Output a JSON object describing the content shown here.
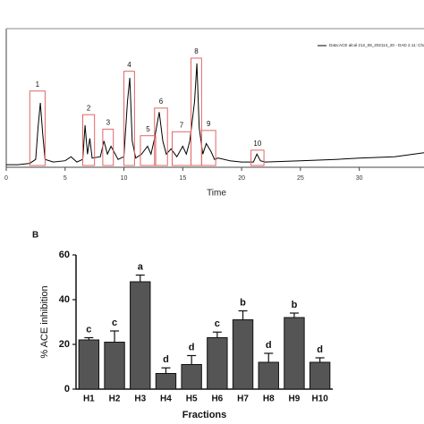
{
  "chart_data": [
    {
      "type": "line",
      "xlabel": "Time",
      "xlim": [
        0,
        35.5
      ],
      "xticks": [
        0,
        5,
        10,
        15,
        20,
        25,
        30
      ],
      "ylim": [
        0,
        1
      ],
      "series": [
        {
          "name": "Data:ACE alcal 212_08_202114_20 - DAD 2.11: Channel 1",
          "color": "#000000",
          "x": [
            0,
            1,
            2,
            2.5,
            2.7,
            2.9,
            3.1,
            3.3,
            4,
            5,
            5.5,
            6,
            6.5,
            6.7,
            6.9,
            7.1,
            7.3,
            8,
            8.3,
            8.6,
            8.9,
            9.5,
            10,
            10.3,
            10.5,
            10.7,
            11,
            11.5,
            12,
            12.3,
            12.6,
            13,
            13.3,
            13.6,
            14,
            14.5,
            15,
            15.3,
            15.6,
            16,
            16.2,
            16.4,
            16.7,
            17,
            17.4,
            17.7,
            18,
            19,
            20,
            21,
            21.3,
            21.6,
            22,
            25,
            28,
            30,
            33,
            35.5
          ],
          "values": [
            0.02,
            0.02,
            0.03,
            0.06,
            0.3,
            0.49,
            0.25,
            0.06,
            0.04,
            0.05,
            0.08,
            0.04,
            0.06,
            0.32,
            0.1,
            0.22,
            0.07,
            0.08,
            0.2,
            0.1,
            0.16,
            0.06,
            0.08,
            0.5,
            0.68,
            0.2,
            0.07,
            0.1,
            0.16,
            0.1,
            0.22,
            0.42,
            0.2,
            0.1,
            0.14,
            0.08,
            0.16,
            0.1,
            0.2,
            0.5,
            0.79,
            0.3,
            0.1,
            0.18,
            0.12,
            0.06,
            0.07,
            0.05,
            0.04,
            0.04,
            0.1,
            0.05,
            0.04,
            0.05,
            0.06,
            0.07,
            0.08,
            0.11
          ]
        }
      ],
      "peaks": [
        {
          "label": "1",
          "range": [
            2.0,
            3.3
          ],
          "top": 0.58
        },
        {
          "label": "2",
          "range": [
            6.5,
            7.5
          ],
          "top": 0.4
        },
        {
          "label": "3",
          "range": [
            8.2,
            9.1
          ],
          "top": 0.29
        },
        {
          "label": "4",
          "range": [
            10.0,
            10.9
          ],
          "top": 0.73
        },
        {
          "label": "5",
          "range": [
            11.4,
            12.7
          ],
          "top": 0.24
        },
        {
          "label": "6",
          "range": [
            12.6,
            13.7
          ],
          "top": 0.45
        },
        {
          "label": "7",
          "range": [
            14.1,
            15.7
          ],
          "top": 0.27
        },
        {
          "label": "8",
          "range": [
            15.7,
            16.6
          ],
          "top": 0.83
        },
        {
          "label": "9",
          "range": [
            16.6,
            17.8
          ],
          "top": 0.28
        },
        {
          "label": "10",
          "range": [
            20.8,
            21.9
          ],
          "top": 0.13
        }
      ]
    },
    {
      "type": "bar",
      "panel": "B",
      "xlabel": "Fractions",
      "ylabel": "% ACE inhibition",
      "categories": [
        "H1",
        "H2",
        "H3",
        "H4",
        "H5",
        "H6",
        "H7",
        "H8",
        "H9",
        "H10"
      ],
      "values": [
        22,
        21,
        48,
        7,
        11,
        23,
        31,
        12,
        32,
        12
      ],
      "errors": [
        1,
        5,
        3,
        2.5,
        4,
        2.5,
        4,
        4,
        2,
        2
      ],
      "letters": [
        "c",
        "c",
        "a",
        "d",
        "d",
        "c",
        "b",
        "d",
        "b",
        "d"
      ],
      "color": "#555555",
      "ylim": [
        0,
        60
      ],
      "yticks": [
        0,
        20,
        40,
        60
      ]
    }
  ]
}
